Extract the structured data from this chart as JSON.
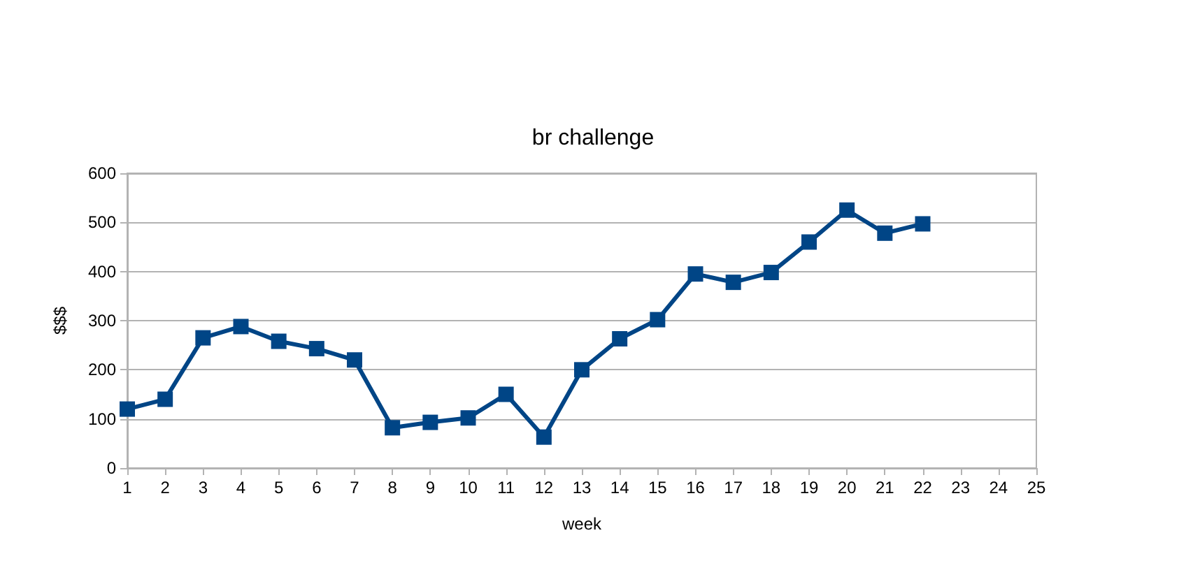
{
  "chart_data": {
    "type": "line",
    "title": "br challenge",
    "xlabel": "week",
    "ylabel": "$$$",
    "x": [
      1,
      2,
      3,
      4,
      5,
      6,
      7,
      8,
      9,
      10,
      11,
      12,
      13,
      14,
      15,
      16,
      17,
      18,
      19,
      20,
      21,
      22
    ],
    "series": [
      {
        "color": "#004586",
        "values": [
          120,
          140,
          265,
          288,
          258,
          243,
          220,
          82,
          93,
          102,
          150,
          63,
          200,
          263,
          302,
          395,
          378,
          398,
          460,
          525,
          478,
          497
        ]
      }
    ],
    "xlim": [
      1,
      25
    ],
    "xticks": [
      1,
      2,
      3,
      4,
      5,
      6,
      7,
      8,
      9,
      10,
      11,
      12,
      13,
      14,
      15,
      16,
      17,
      18,
      19,
      20,
      21,
      22,
      23,
      24,
      25
    ],
    "ylim": [
      0,
      600
    ],
    "yticks": [
      0,
      100,
      200,
      300,
      400,
      500,
      600
    ],
    "grid": "y",
    "marker": "square",
    "line_style": "solid"
  }
}
